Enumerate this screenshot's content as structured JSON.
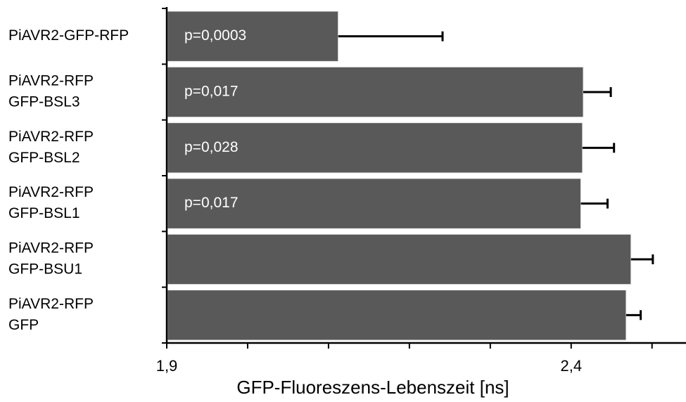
{
  "chart_data": {
    "type": "hbar",
    "categories": [
      [
        "PiAVR2-GFP-RFP"
      ],
      [
        "PiAVR2-RFP",
        "GFP-BSL3"
      ],
      [
        "PiAVR2-RFP",
        "GFP-BSL2"
      ],
      [
        "PiAVR2-RFP",
        "GFP-BSL1"
      ],
      [
        "PiAVR2-RFP",
        "GFP-BSU1"
      ],
      [
        "PiAVR2-RFP",
        "GFP"
      ]
    ],
    "values": [
      2.112,
      2.415,
      2.414,
      2.412,
      2.474,
      2.468
    ],
    "errors": [
      0.129,
      0.034,
      0.039,
      0.033,
      0.027,
      0.018
    ],
    "annotations": [
      "p=0,0003",
      "p=0,017",
      "p=0,028",
      "p=0,017",
      null,
      null
    ],
    "color": "#595959",
    "x_label": "GFP-Fluoreszens-Lebenszeit [ns]",
    "xlim": [
      1.9,
      2.542
    ],
    "xticks": [
      {
        "value": 1.9,
        "label": "1,9"
      },
      {
        "value": 2.4,
        "label": "2,4"
      }
    ],
    "xminor_ticks": [
      2.0,
      2.1,
      2.2,
      2.3,
      2.5
    ]
  }
}
